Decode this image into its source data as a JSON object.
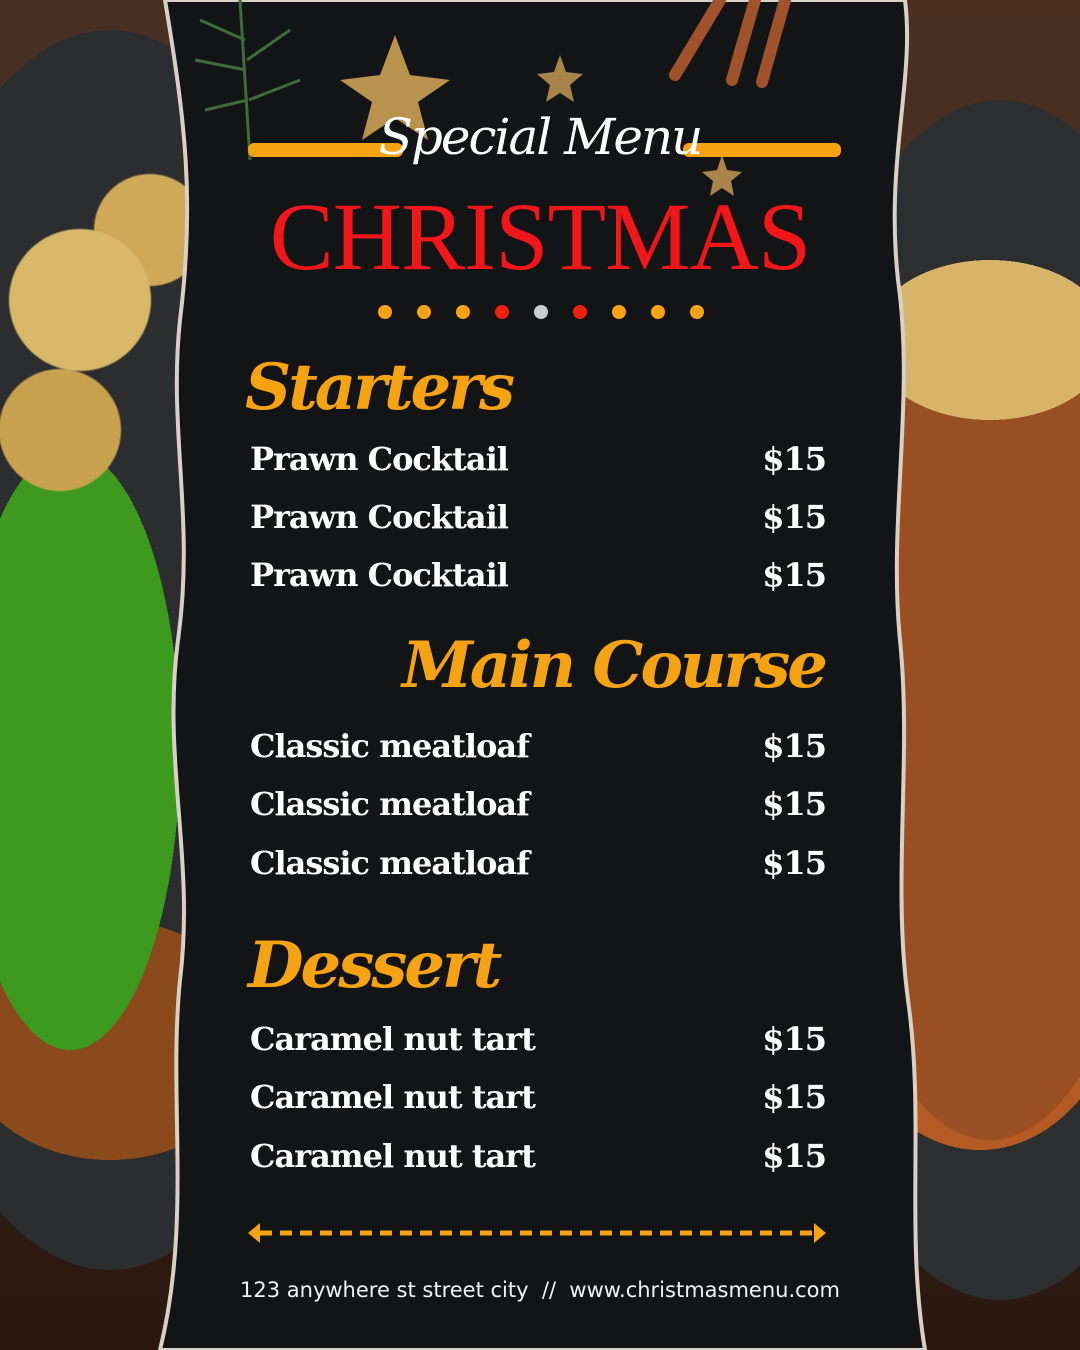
{
  "header": {
    "subtitle": "Special Menu",
    "title": "CHRISTMAS"
  },
  "colors": {
    "accent": "#f5a313",
    "title_red": "#f0161a",
    "panel": "#131416"
  },
  "dots": [
    "#f5a313",
    "#f5a313",
    "#f5a313",
    "#f0200f",
    "#cccccc",
    "#f0200f",
    "#f5a313",
    "#f5a313",
    "#f5a313"
  ],
  "sections": [
    {
      "title": "Starters",
      "items": [
        {
          "name": "Prawn Cocktail",
          "price": "$15"
        },
        {
          "name": "Prawn Cocktail",
          "price": "$15"
        },
        {
          "name": "Prawn Cocktail",
          "price": "$15"
        }
      ]
    },
    {
      "title": "Main Course",
      "items": [
        {
          "name": "Classic meatloaf",
          "price": "$15"
        },
        {
          "name": "Classic meatloaf",
          "price": "$15"
        },
        {
          "name": "Classic meatloaf",
          "price": "$15"
        }
      ]
    },
    {
      "title": "Dessert",
      "items": [
        {
          "name": "Caramel nut tart",
          "price": "$15"
        },
        {
          "name": "Caramel nut tart",
          "price": "$15"
        },
        {
          "name": "Caramel nut tart",
          "price": "$15"
        }
      ]
    }
  ],
  "footer": {
    "address": "123 anywhere st street city",
    "separator": "//",
    "website": "www.christmasmenu.com"
  }
}
